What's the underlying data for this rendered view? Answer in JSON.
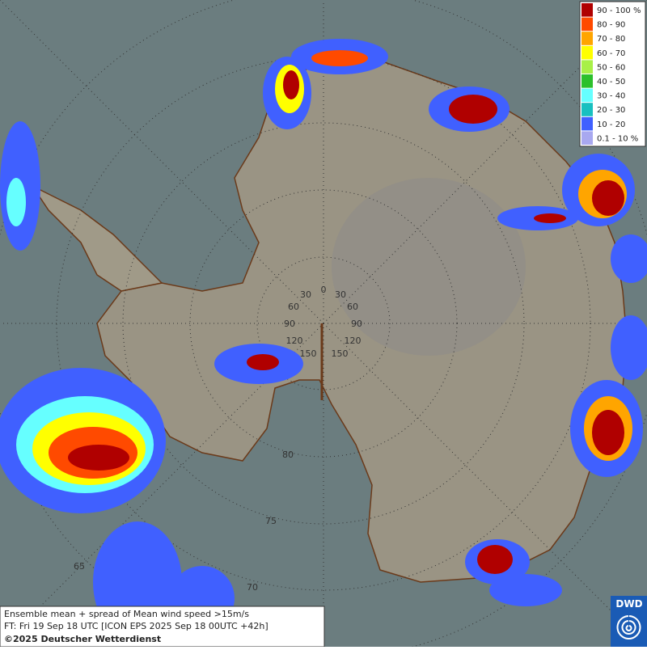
{
  "legend": {
    "items": [
      {
        "label": "90 - 100 %",
        "color": "#b00000"
      },
      {
        "label": "80 - 90",
        "color": "#ff4a00"
      },
      {
        "label": "70 - 80",
        "color": "#ffa500"
      },
      {
        "label": "60 - 70",
        "color": "#ffff00"
      },
      {
        "label": "50 - 60",
        "color": "#a8f048"
      },
      {
        "label": "40 - 50",
        "color": "#2cc02c"
      },
      {
        "label": "30 - 40",
        "color": "#66ffff"
      },
      {
        "label": "20 - 30",
        "color": "#18c0c0"
      },
      {
        "label": "10 - 20",
        "color": "#4060ff"
      },
      {
        "label": "0.1 - 10 %",
        "color": "#a8a8f0"
      }
    ]
  },
  "info": {
    "lines": [
      "Ensemble mean + spread of Mean wind speed >15m/s",
      "FT: Fri 19 Sep 18 UTC [ICON EPS 2025 Sep 18 00UTC +42h]",
      "©2025 Deutscher Wetterdienst"
    ]
  },
  "grid_labels": {
    "longitude": [
      "0",
      "30",
      "30",
      "60",
      "60",
      "90",
      "90",
      "120",
      "120",
      "150",
      "150"
    ],
    "latitude": [
      "80",
      "75",
      "70",
      "65"
    ]
  },
  "logo": "DWD"
}
